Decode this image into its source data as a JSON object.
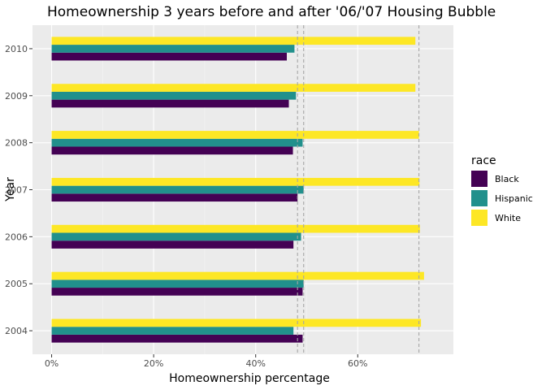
{
  "chart_data": {
    "type": "bar",
    "orientation": "horizontal",
    "title": "Homeownership 3 years before and after '06/'07 Housing Bubble",
    "xlabel": "Homeownership percentage",
    "ylabel": "Year",
    "xlim": [
      -0.0375,
      0.7875
    ],
    "x_ticks": [
      0,
      0.2,
      0.4,
      0.6
    ],
    "x_tick_labels": [
      "0%",
      "20%",
      "40%",
      "60%"
    ],
    "categories": [
      "2004",
      "2005",
      "2006",
      "2007",
      "2008",
      "2009",
      "2010"
    ],
    "series": [
      {
        "name": "Black",
        "color": "#440154",
        "values": [
          0.492,
          0.492,
          0.474,
          0.482,
          0.473,
          0.465,
          0.461
        ]
      },
      {
        "name": "Hispanic",
        "color": "#21908c",
        "values": [
          0.474,
          0.494,
          0.489,
          0.494,
          0.492,
          0.479,
          0.476
        ]
      },
      {
        "name": "White",
        "color": "#fde725",
        "values": [
          0.724,
          0.73,
          0.722,
          0.721,
          0.72,
          0.713,
          0.713
        ]
      }
    ],
    "reference_lines_x": [
      0.482,
      0.494,
      0.72
    ],
    "reference_line_style": "dashed grey",
    "legend": {
      "title": "race",
      "position": "right",
      "items": [
        "Black",
        "Hispanic",
        "White"
      ]
    },
    "grid": true,
    "background": "#ebebeb"
  }
}
